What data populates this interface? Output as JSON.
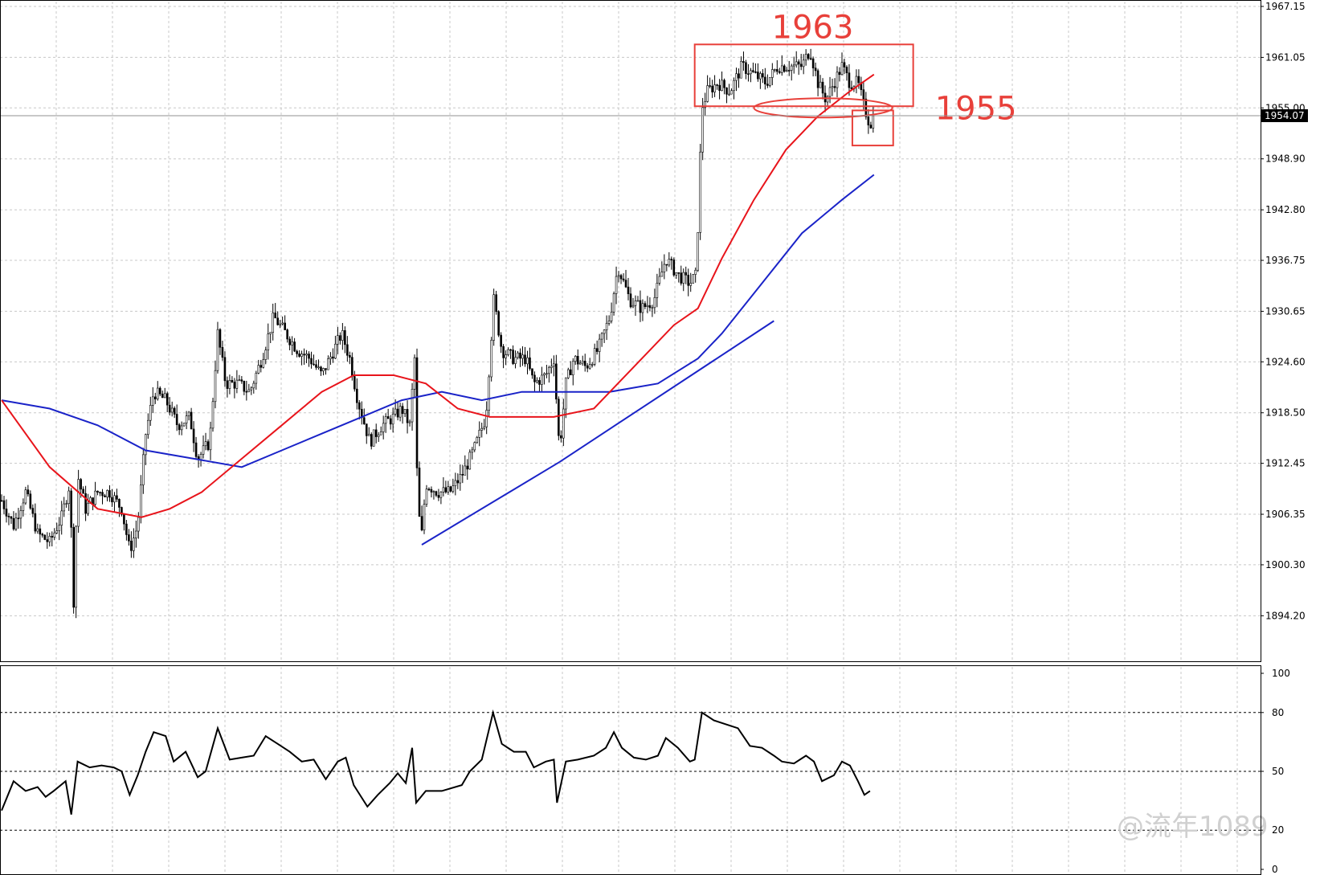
{
  "colors": {
    "candle": "#000000",
    "ma_fast": "#e8141b",
    "ma_slow": "#1a23c8",
    "trendline": "#1a23c8",
    "annotation": "#e8403a",
    "grid": "#c8c8c8",
    "price_tag_bg": "#000000"
  },
  "chart_data": [
    {
      "type": "candlestick",
      "title": "",
      "ylim": [
        1890.0,
        1967.15
      ],
      "y_ticks": [
        "1967.15",
        "1961.05",
        "1955.00",
        "1948.90",
        "1942.80",
        "1936.75",
        "1930.65",
        "1924.60",
        "1918.50",
        "1912.45",
        "1906.35",
        "1900.30",
        "1894.20"
      ],
      "current_price": "1954.07",
      "grid": true,
      "price_path": [
        [
          0,
          1908
        ],
        [
          15,
          1905
        ],
        [
          30,
          1909
        ],
        [
          45,
          1904
        ],
        [
          60,
          1903
        ],
        [
          75,
          1906
        ],
        [
          85,
          1910
        ],
        [
          90,
          1896
        ],
        [
          95,
          1911
        ],
        [
          105,
          1907
        ],
        [
          120,
          1909
        ],
        [
          135,
          1909
        ],
        [
          150,
          1907
        ],
        [
          160,
          1902
        ],
        [
          170,
          1905
        ],
        [
          180,
          1916
        ],
        [
          190,
          1921
        ],
        [
          205,
          1920
        ],
        [
          220,
          1917
        ],
        [
          235,
          1918
        ],
        [
          245,
          1913
        ],
        [
          260,
          1915
        ],
        [
          270,
          1928
        ],
        [
          280,
          1922
        ],
        [
          295,
          1922
        ],
        [
          310,
          1921
        ],
        [
          325,
          1925
        ],
        [
          340,
          1930
        ],
        [
          355,
          1928
        ],
        [
          370,
          1926
        ],
        [
          385,
          1925
        ],
        [
          400,
          1923
        ],
        [
          415,
          1926
        ],
        [
          425,
          1928
        ],
        [
          435,
          1925
        ],
        [
          445,
          1920
        ],
        [
          460,
          1915
        ],
        [
          475,
          1917
        ],
        [
          490,
          1918
        ],
        [
          500,
          1919
        ],
        [
          510,
          1917
        ],
        [
          516,
          1925
        ],
        [
          520,
          1907
        ],
        [
          525,
          1904
        ],
        [
          530,
          1910
        ],
        [
          545,
          1909
        ],
        [
          560,
          1909
        ],
        [
          575,
          1911
        ],
        [
          590,
          1914
        ],
        [
          605,
          1918
        ],
        [
          615,
          1932
        ],
        [
          625,
          1926
        ],
        [
          640,
          1925
        ],
        [
          655,
          1925
        ],
        [
          665,
          1922
        ],
        [
          680,
          1923
        ],
        [
          690,
          1925
        ],
        [
          697,
          1914
        ],
        [
          705,
          1922
        ],
        [
          715,
          1925
        ],
        [
          730,
          1924
        ],
        [
          745,
          1926
        ],
        [
          760,
          1930
        ],
        [
          770,
          1936
        ],
        [
          785,
          1932
        ],
        [
          800,
          1931
        ],
        [
          815,
          1932
        ],
        [
          830,
          1937
        ],
        [
          845,
          1935
        ],
        [
          860,
          1934
        ],
        [
          868,
          1935
        ],
        [
          875,
          1955
        ],
        [
          882,
          1957
        ],
        [
          895,
          1958
        ],
        [
          910,
          1957
        ],
        [
          925,
          1960
        ],
        [
          940,
          1959
        ],
        [
          955,
          1958
        ],
        [
          970,
          1960
        ],
        [
          985,
          1960
        ],
        [
          1000,
          1960
        ],
        [
          1010,
          1962
        ],
        [
          1020,
          1958
        ],
        [
          1030,
          1956
        ],
        [
          1040,
          1958
        ],
        [
          1050,
          1960
        ],
        [
          1060,
          1958
        ],
        [
          1070,
          1958
        ],
        [
          1078,
          1955
        ],
        [
          1085,
          1953
        ],
        [
          1090,
          1954.07
        ]
      ],
      "series": [
        {
          "role": "fast-ma",
          "values": [
            [
              0,
              1920
            ],
            [
              60,
              1912
            ],
            [
              120,
              1907
            ],
            [
              175,
              1906
            ],
            [
              210,
              1907
            ],
            [
              250,
              1909
            ],
            [
              300,
              1913
            ],
            [
              350,
              1917
            ],
            [
              400,
              1921
            ],
            [
              440,
              1923
            ],
            [
              490,
              1923
            ],
            [
              530,
              1922
            ],
            [
              570,
              1919
            ],
            [
              610,
              1918
            ],
            [
              650,
              1918
            ],
            [
              690,
              1918
            ],
            [
              740,
              1919
            ],
            [
              790,
              1924
            ],
            [
              840,
              1929
            ],
            [
              870,
              1931
            ],
            [
              900,
              1937
            ],
            [
              940,
              1944
            ],
            [
              980,
              1950
            ],
            [
              1020,
              1954
            ],
            [
              1060,
              1957
            ],
            [
              1090,
              1959
            ]
          ]
        },
        {
          "role": "slow-ma",
          "values": [
            [
              0,
              1920
            ],
            [
              60,
              1919
            ],
            [
              120,
              1917
            ],
            [
              180,
              1914
            ],
            [
              240,
              1913
            ],
            [
              300,
              1912
            ],
            [
              350,
              1914
            ],
            [
              400,
              1916
            ],
            [
              450,
              1918
            ],
            [
              500,
              1920
            ],
            [
              550,
              1921
            ],
            [
              600,
              1920
            ],
            [
              650,
              1921
            ],
            [
              700,
              1921
            ],
            [
              760,
              1921
            ],
            [
              820,
              1922
            ],
            [
              870,
              1925
            ],
            [
              900,
              1928
            ],
            [
              950,
              1934
            ],
            [
              1000,
              1940
            ],
            [
              1050,
              1944
            ],
            [
              1090,
              1947
            ]
          ]
        }
      ],
      "trendlines": [
        {
          "from": [
            525,
            1902.7
          ],
          "to": [
            697,
            1912.6
          ]
        },
        {
          "from": [
            697,
            1912.6
          ],
          "to": [
            965,
            1929.5
          ]
        }
      ],
      "annotations": [
        {
          "text": "1963",
          "kind": "resistance-box",
          "x_range": [
            866,
            1139
          ],
          "y_range": [
            1955.2,
            1962.6
          ]
        },
        {
          "text": "1955",
          "kind": "support-ellipse-and-box",
          "ellipse_x_range": [
            940,
            1113
          ],
          "ellipse_y": 1955.0,
          "box_x_range": [
            1063,
            1114
          ],
          "box_y_range": [
            1950.5,
            1954.7
          ]
        }
      ],
      "watermark": "@流年1089"
    },
    {
      "type": "line",
      "title": "",
      "ylim": [
        0,
        100
      ],
      "y_ticks": [
        "100",
        "80",
        "50",
        "20",
        "0"
      ],
      "levels": [
        80,
        50,
        20
      ],
      "series": [
        {
          "role": "oscillator",
          "values": [
            [
              0,
              30
            ],
            [
              15,
              45
            ],
            [
              30,
              40
            ],
            [
              45,
              42
            ],
            [
              55,
              37
            ],
            [
              65,
              40
            ],
            [
              80,
              45
            ],
            [
              87,
              28
            ],
            [
              95,
              55
            ],
            [
              110,
              52
            ],
            [
              125,
              53
            ],
            [
              140,
              52
            ],
            [
              150,
              50
            ],
            [
              160,
              38
            ],
            [
              170,
              48
            ],
            [
              180,
              60
            ],
            [
              190,
              70
            ],
            [
              205,
              68
            ],
            [
              215,
              55
            ],
            [
              230,
              60
            ],
            [
              245,
              47
            ],
            [
              255,
              50
            ],
            [
              270,
              72
            ],
            [
              285,
              56
            ],
            [
              300,
              57
            ],
            [
              315,
              58
            ],
            [
              330,
              68
            ],
            [
              345,
              64
            ],
            [
              360,
              60
            ],
            [
              375,
              55
            ],
            [
              390,
              56
            ],
            [
              405,
              46
            ],
            [
              420,
              55
            ],
            [
              430,
              57
            ],
            [
              440,
              43
            ],
            [
              457,
              32
            ],
            [
              470,
              38
            ],
            [
              485,
              44
            ],
            [
              495,
              49
            ],
            [
              505,
              44
            ],
            [
              513,
              62
            ],
            [
              518,
              34
            ],
            [
              530,
              40
            ],
            [
              550,
              40
            ],
            [
              575,
              43
            ],
            [
              585,
              50
            ],
            [
              600,
              56
            ],
            [
              614,
              80
            ],
            [
              625,
              64
            ],
            [
              640,
              60
            ],
            [
              655,
              60
            ],
            [
              665,
              52
            ],
            [
              680,
              55
            ],
            [
              690,
              56
            ],
            [
              694,
              34
            ],
            [
              705,
              55
            ],
            [
              720,
              56
            ],
            [
              740,
              58
            ],
            [
              755,
              62
            ],
            [
              765,
              70
            ],
            [
              775,
              62
            ],
            [
              790,
              57
            ],
            [
              805,
              56
            ],
            [
              820,
              58
            ],
            [
              830,
              67
            ],
            [
              845,
              62
            ],
            [
              860,
              55
            ],
            [
              866,
              56
            ],
            [
              875,
              80
            ],
            [
              890,
              76
            ],
            [
              905,
              74
            ],
            [
              920,
              72
            ],
            [
              935,
              63
            ],
            [
              950,
              62
            ],
            [
              965,
              58
            ],
            [
              975,
              55
            ],
            [
              990,
              54
            ],
            [
              1005,
              58
            ],
            [
              1015,
              55
            ],
            [
              1025,
              45
            ],
            [
              1040,
              48
            ],
            [
              1050,
              55
            ],
            [
              1060,
              53
            ],
            [
              1070,
              45
            ],
            [
              1078,
              38
            ],
            [
              1085,
              40
            ]
          ]
        }
      ]
    }
  ]
}
